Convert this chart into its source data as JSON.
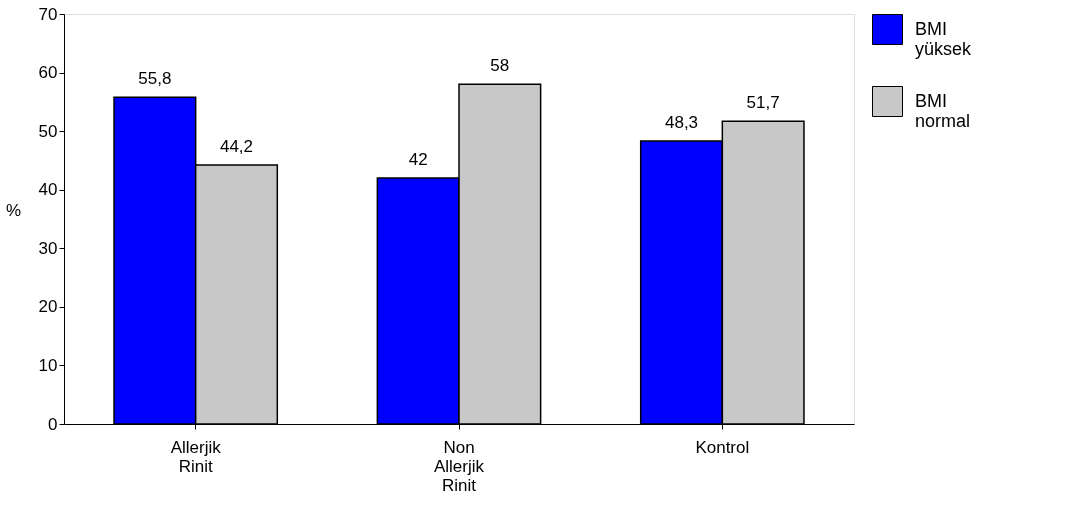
{
  "chart_data": {
    "type": "bar",
    "ylabel": "%",
    "categories": [
      "Allerjik Rinit",
      "Non Allerjik Rinit",
      "Kontrol"
    ],
    "series": [
      {
        "name": "BMI yüksek",
        "color": "#0000ff",
        "values": [
          55.8,
          42,
          48.3
        ],
        "value_labels": [
          "55,8",
          "42",
          "48,3"
        ]
      },
      {
        "name": "BMI normal",
        "color": "#c8c8c8",
        "values": [
          44.2,
          58,
          51.7
        ],
        "value_labels": [
          "44,2",
          "58",
          "51,7"
        ]
      }
    ],
    "ylim": [
      0,
      70
    ],
    "yticks": [
      0,
      10,
      20,
      30,
      40,
      50,
      60,
      70
    ],
    "grid": false,
    "legend": "right"
  }
}
